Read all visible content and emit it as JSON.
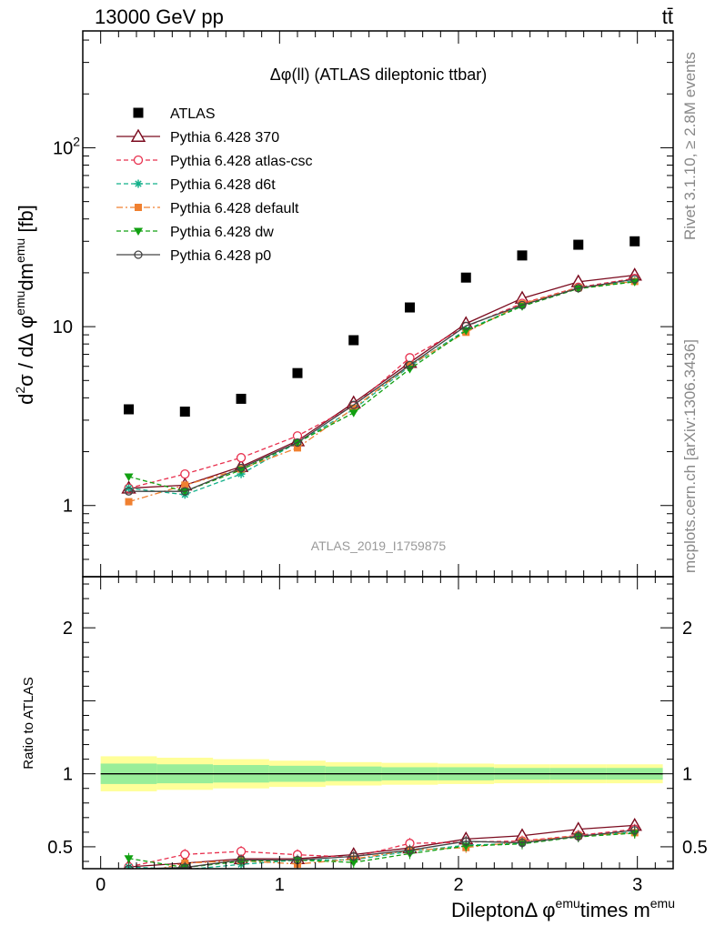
{
  "header": {
    "left": "13000 GeV pp",
    "right": "tt̄"
  },
  "side_labels": {
    "rivet": "Rivet 3.1.10, ≥ 2.8M events",
    "mcplots": "mcplots.cern.ch [arXiv:1306.3436]"
  },
  "chart_data": {
    "type": "scatter",
    "title": "Δφ(ll) (ATLAS dileptonic ttbar)",
    "watermark": "ATLAS_2019_I1759875",
    "main": {
      "ylabel": {
        "base": "d",
        "sup1": "2",
        "mid": "σ / dΔ φ",
        "sup2": "emu",
        "mid2": "dm",
        "sup3": "emu",
        "end": " [fb]"
      },
      "yscale": "log",
      "ylim": [
        0.4,
        450
      ],
      "yticks": [
        {
          "v": 1,
          "label": "1"
        },
        {
          "v": 10,
          "label": "10"
        },
        {
          "v": 100,
          "label": "10",
          "sup": "2"
        }
      ],
      "legend_position": "top-left"
    },
    "ratio": {
      "ylabel": "Ratio to ATLAS",
      "ylim": [
        0.35,
        2.35
      ],
      "yticks": [
        {
          "v": 0.5,
          "label": "0.5"
        },
        {
          "v": 1,
          "label": "1"
        },
        {
          "v": 2,
          "label": "2"
        }
      ]
    },
    "x": {
      "label": {
        "a": "DileptonΔ φ",
        "sup1": "emu",
        "b": "times m",
        "sup2": "emu"
      },
      "xlim": [
        -0.1,
        3.2
      ],
      "ticks": [
        {
          "v": 0,
          "label": "0"
        },
        {
          "v": 1,
          "label": "1"
        },
        {
          "v": 2,
          "label": "2"
        },
        {
          "v": 3,
          "label": "3"
        }
      ]
    },
    "x_values": [
      0.157,
      0.471,
      0.785,
      1.1,
      1.414,
      1.728,
      2.042,
      2.356,
      2.67,
      2.985
    ],
    "data": {
      "name": "ATLAS",
      "values": [
        3.45,
        3.35,
        3.95,
        5.5,
        8.4,
        12.8,
        18.8,
        25.0,
        28.7,
        30.0
      ],
      "color": "#000000"
    },
    "band_edges": [
      0.0,
      0.314,
      0.628,
      0.942,
      1.257,
      1.571,
      1.885,
      2.199,
      2.513,
      2.827,
      3.142
    ],
    "band_inner": [
      0.07,
      0.065,
      0.06,
      0.055,
      0.05,
      0.045,
      0.045,
      0.04,
      0.04,
      0.04
    ],
    "band_outer": [
      0.12,
      0.11,
      0.1,
      0.09,
      0.08,
      0.075,
      0.07,
      0.065,
      0.065,
      0.065
    ],
    "series": [
      {
        "name": "Pythia 6.428 370",
        "color": "#7b0a1e",
        "dash": "",
        "marker": "triangle-open",
        "values": [
          1.25,
          1.3,
          1.65,
          2.3,
          3.75,
          6.3,
          10.4,
          14.4,
          17.8,
          19.4
        ]
      },
      {
        "name": "Pythia 6.428 atlas-csc",
        "color": "#e8304e",
        "dash": "5,3",
        "marker": "circle-open",
        "values": [
          1.25,
          1.5,
          1.85,
          2.45,
          3.6,
          6.7,
          10.0,
          13.5,
          16.6,
          18.6
        ]
      },
      {
        "name": "Pythia 6.428 d6t",
        "color": "#13b08a",
        "dash": "5,3",
        "marker": "star",
        "values": [
          1.25,
          1.15,
          1.5,
          2.25,
          3.45,
          6.0,
          9.6,
          13.1,
          16.5,
          18.0
        ]
      },
      {
        "name": "Pythia 6.428 default",
        "color": "#f08030",
        "dash": "7,3,2,3",
        "marker": "square",
        "values": [
          1.05,
          1.3,
          1.6,
          2.1,
          3.5,
          6.1,
          9.3,
          13.4,
          16.5,
          17.9
        ]
      },
      {
        "name": "Pythia 6.428 dw",
        "color": "#11a011",
        "dash": "5,3",
        "marker": "triangle-down",
        "values": [
          1.45,
          1.2,
          1.58,
          2.25,
          3.3,
          5.8,
          9.5,
          13.0,
          16.3,
          17.8
        ]
      },
      {
        "name": "Pythia 6.428 p0",
        "color": "#444444",
        "dash": "",
        "marker": "circle-open-small",
        "values": [
          1.2,
          1.2,
          1.62,
          2.25,
          3.65,
          6.1,
          10.1,
          13.2,
          16.4,
          18.4
        ]
      }
    ]
  }
}
